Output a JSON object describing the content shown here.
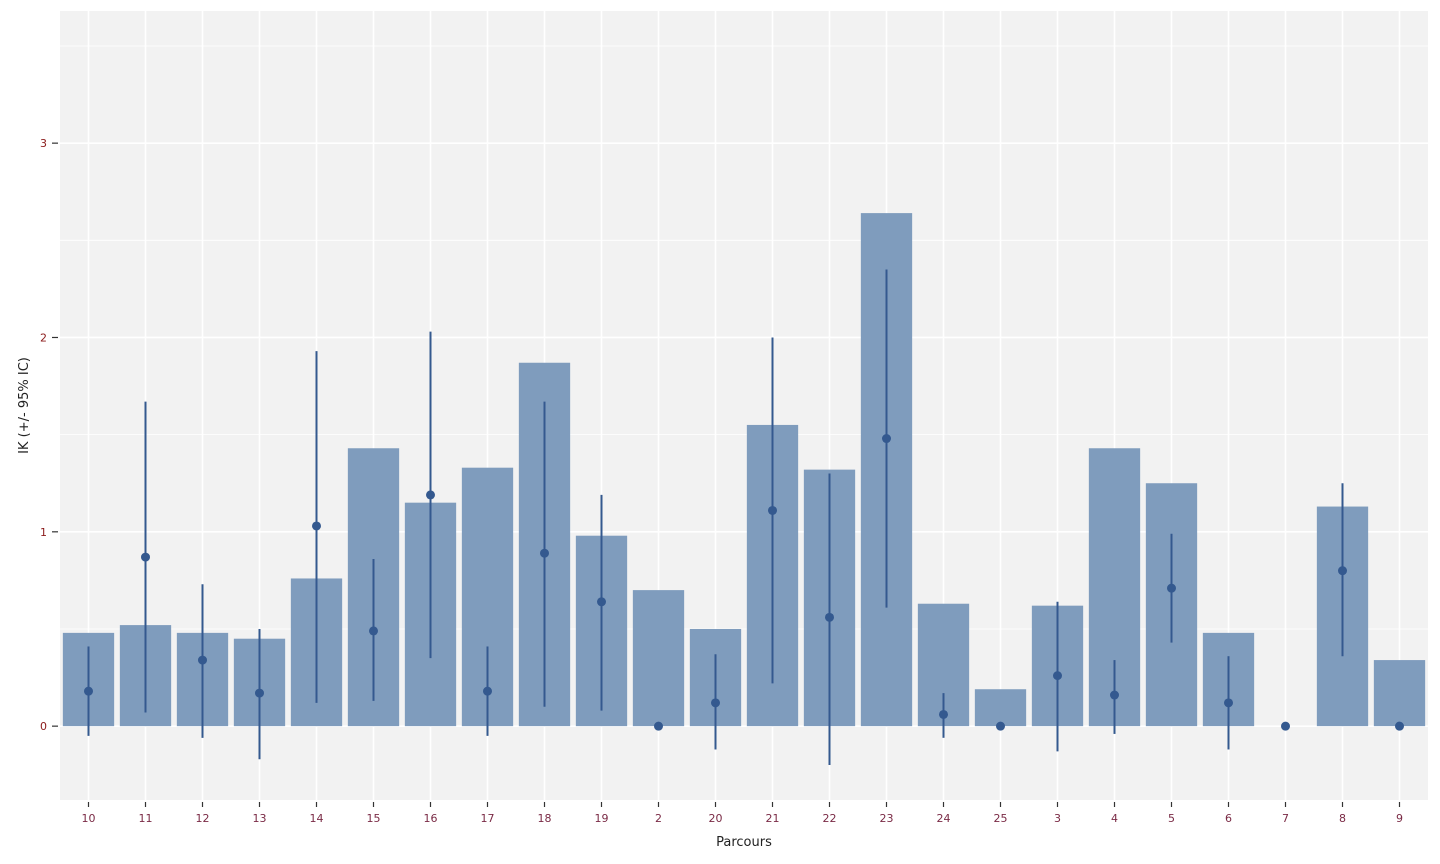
{
  "chart_data": {
    "type": "bar",
    "title": "",
    "xlabel": "Parcours",
    "ylabel": "IK (+/- 95% IC)",
    "ylim": [
      -0.38,
      3.68
    ],
    "yticks": [
      0,
      1,
      2,
      3
    ],
    "grid": true,
    "categories": [
      "10",
      "11",
      "12",
      "13",
      "14",
      "15",
      "16",
      "17",
      "18",
      "19",
      "2",
      "20",
      "21",
      "22",
      "23",
      "24",
      "25",
      "3",
      "4",
      "5",
      "6",
      "7",
      "8",
      "9"
    ],
    "bar_values": [
      0.48,
      0.52,
      0.48,
      0.45,
      0.76,
      1.43,
      1.15,
      1.33,
      1.87,
      0.98,
      0.7,
      0.5,
      1.55,
      1.32,
      2.64,
      0.63,
      0.19,
      0.62,
      1.43,
      1.25,
      0.48,
      0.0,
      1.13,
      0.34
    ],
    "point_values": [
      0.18,
      0.87,
      0.34,
      0.17,
      1.03,
      0.49,
      1.19,
      0.18,
      0.89,
      0.64,
      0.0,
      0.12,
      1.11,
      0.56,
      1.48,
      0.06,
      0.0,
      0.26,
      0.16,
      0.71,
      0.12,
      0.0,
      0.8,
      0.0
    ],
    "ci_low": [
      -0.05,
      0.07,
      -0.06,
      -0.17,
      0.12,
      0.13,
      0.35,
      -0.05,
      0.1,
      0.08,
      0.0,
      -0.12,
      0.22,
      -0.2,
      0.61,
      -0.06,
      0.0,
      -0.13,
      -0.04,
      0.43,
      -0.12,
      0.0,
      0.36,
      0.0
    ],
    "ci_high": [
      0.41,
      1.67,
      0.73,
      0.5,
      1.93,
      0.86,
      2.03,
      0.41,
      1.67,
      1.19,
      0.0,
      0.37,
      2.0,
      1.3,
      2.35,
      0.17,
      0.0,
      0.64,
      0.34,
      0.99,
      0.36,
      0.0,
      1.25,
      0.0
    ],
    "colors": {
      "panel_bg": "#f2f2f2",
      "grid": "#ffffff",
      "bar": "#7f9cbd",
      "point": "#34598f",
      "x_tick_text": "#7a2a45",
      "y_tick_text": "#8b1a1a"
    }
  }
}
